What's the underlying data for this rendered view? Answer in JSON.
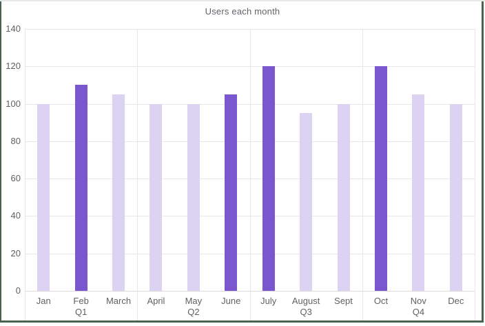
{
  "chart_data": {
    "type": "bar",
    "title": "Users each month",
    "categories": [
      "Jan",
      "Feb",
      "March",
      "April",
      "May",
      "June",
      "July",
      "August",
      "Sept",
      "Oct",
      "Nov",
      "Dec"
    ],
    "values": [
      100,
      110,
      105,
      100,
      100,
      105,
      120,
      95,
      100,
      120,
      105,
      100
    ],
    "highlighted": [
      false,
      true,
      false,
      false,
      false,
      true,
      true,
      false,
      false,
      true,
      false,
      false
    ],
    "groups": [
      {
        "label": "Q1",
        "months": [
          "Jan",
          "Feb",
          "March"
        ]
      },
      {
        "label": "Q2",
        "months": [
          "April",
          "May",
          "June"
        ]
      },
      {
        "label": "Q3",
        "months": [
          "July",
          "August",
          "Sept"
        ]
      },
      {
        "label": "Q4",
        "months": [
          "Oct",
          "Nov",
          "Dec"
        ]
      }
    ],
    "xlabel": "",
    "ylabel": "",
    "ylim": [
      0,
      140
    ],
    "yticks": [
      0,
      20,
      40,
      60,
      80,
      100,
      120,
      140
    ],
    "grid": true,
    "legend": "none",
    "colors": {
      "bar": "#dcd3f2",
      "bar_highlight": "#7a57cf",
      "gridline": "#e7e7e7",
      "axis_line": "#dadada",
      "label_text": "#606060",
      "title_text": "#5f6368",
      "frame_green": "#46644e",
      "frame_top": "#e8e8e8",
      "background": "#ffffff"
    }
  }
}
